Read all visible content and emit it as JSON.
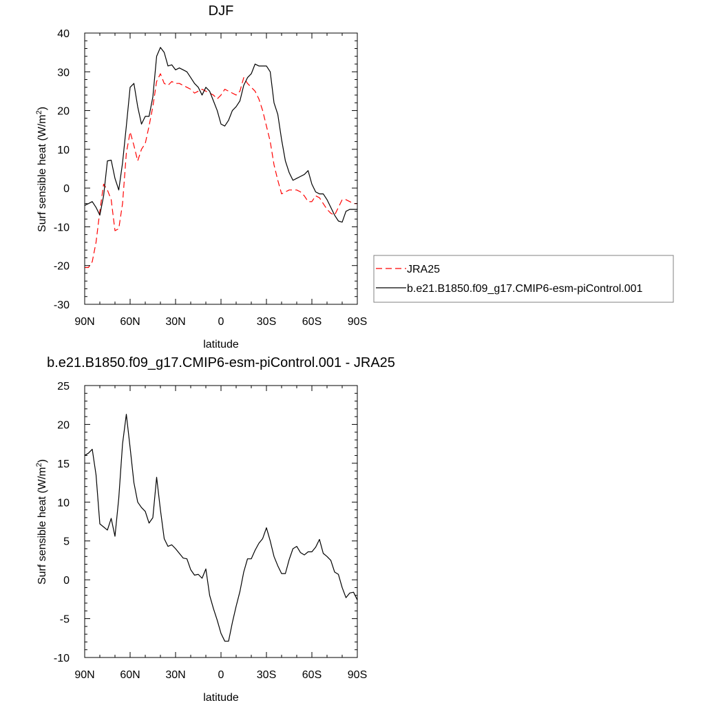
{
  "chart_data": [
    {
      "type": "line",
      "title": "DJF",
      "xlabel": "latitude",
      "ylabel": "Surf sensible heat (W/m",
      "ylabel_sup": "2",
      "ylabel_close": ")",
      "xlim": [
        90,
        -90
      ],
      "ylim": [
        -30,
        40
      ],
      "xticks": [
        90,
        60,
        30,
        0,
        -30,
        -60,
        -90
      ],
      "xtick_labels": [
        "90N",
        "60N",
        "30N",
        "0",
        "30S",
        "60S",
        "90S"
      ],
      "yticks": [
        -30,
        -20,
        -10,
        0,
        10,
        20,
        30,
        40
      ],
      "ytick_labels": [
        "-30",
        "-20",
        "-10",
        "0",
        "10",
        "20",
        "30",
        "40"
      ],
      "grid": false,
      "legend": "right",
      "series": [
        {
          "name": "JRA25",
          "color": "#ff0000",
          "dash": "dashed",
          "points": [
            [
              90,
              -20.5
            ],
            [
              87.5,
              -20.5
            ],
            [
              85,
              -19
            ],
            [
              82.5,
              -14
            ],
            [
              80,
              -6
            ],
            [
              77.5,
              1
            ],
            [
              75,
              -0.5
            ],
            [
              72.5,
              -3
            ],
            [
              70,
              -11
            ],
            [
              67.5,
              -10.5
            ],
            [
              65,
              -4
            ],
            [
              62.5,
              9
            ],
            [
              60,
              14.5
            ],
            [
              57.5,
              11
            ],
            [
              55,
              7
            ],
            [
              52.5,
              10
            ],
            [
              50,
              11.5
            ],
            [
              47.5,
              16
            ],
            [
              45,
              21
            ],
            [
              42.5,
              27.5
            ],
            [
              40,
              29.5
            ],
            [
              37.5,
              27
            ],
            [
              35,
              26.5
            ],
            [
              32.5,
              27.5
            ],
            [
              30,
              27
            ],
            [
              27.5,
              27
            ],
            [
              25,
              26.5
            ],
            [
              22.5,
              26
            ],
            [
              20,
              25.5
            ],
            [
              17.5,
              24.5
            ],
            [
              15,
              25
            ],
            [
              12.5,
              25.5
            ],
            [
              10,
              25
            ],
            [
              7.5,
              24.5
            ],
            [
              5,
              24
            ],
            [
              2.5,
              23
            ],
            [
              0,
              24
            ],
            [
              -2.5,
              25.5
            ],
            [
              -5,
              25
            ],
            [
              -7.5,
              24.5
            ],
            [
              -10,
              24
            ],
            [
              -12.5,
              25
            ],
            [
              -15,
              28.5
            ],
            [
              -17.5,
              27
            ],
            [
              -20,
              26
            ],
            [
              -22.5,
              25
            ],
            [
              -25,
              23
            ],
            [
              -27.5,
              20
            ],
            [
              -30,
              16
            ],
            [
              -32.5,
              12
            ],
            [
              -35,
              6
            ],
            [
              -37.5,
              2
            ],
            [
              -40,
              -1.5
            ],
            [
              -42.5,
              -1
            ],
            [
              -45,
              -0.5
            ],
            [
              -47.5,
              -0.5
            ],
            [
              -50,
              -0.5
            ],
            [
              -52.5,
              -1
            ],
            [
              -55,
              -2
            ],
            [
              -57.5,
              -3.5
            ],
            [
              -60,
              -3.5
            ],
            [
              -62.5,
              -2
            ],
            [
              -65,
              -2.5
            ],
            [
              -67.5,
              -4
            ],
            [
              -70,
              -5.5
            ],
            [
              -72.5,
              -6.5
            ],
            [
              -75,
              -7
            ],
            [
              -77.5,
              -5
            ],
            [
              -80,
              -3
            ],
            [
              -82.5,
              -3
            ],
            [
              -85,
              -3.5
            ],
            [
              -87.5,
              -4
            ],
            [
              -90,
              -4
            ]
          ]
        },
        {
          "name": "b.e21.B1850.f09_g17.CMIP6-esm-piControl.001",
          "color": "#000000",
          "dash": "solid",
          "points": [
            [
              90,
              -4.5
            ],
            [
              87.5,
              -4
            ],
            [
              85,
              -3.5
            ],
            [
              82.5,
              -5
            ],
            [
              80,
              -7
            ],
            [
              77.5,
              -2
            ],
            [
              75,
              7
            ],
            [
              72.5,
              7.2
            ],
            [
              70,
              2.5
            ],
            [
              67.5,
              -0.5
            ],
            [
              65,
              6.5
            ],
            [
              62.5,
              16
            ],
            [
              60,
              26
            ],
            [
              57.5,
              27
            ],
            [
              55,
              21
            ],
            [
              52.5,
              16.5
            ],
            [
              50,
              18.5
            ],
            [
              47.5,
              18.5
            ],
            [
              45,
              23.5
            ],
            [
              42.5,
              34
            ],
            [
              40,
              36.3
            ],
            [
              37.5,
              35
            ],
            [
              35,
              31.5
            ],
            [
              32.5,
              31.8
            ],
            [
              30,
              30.5
            ],
            [
              27.5,
              31
            ],
            [
              25,
              30.5
            ],
            [
              22.5,
              30
            ],
            [
              20,
              28.5
            ],
            [
              17.5,
              27
            ],
            [
              15,
              26
            ],
            [
              12.5,
              24
            ],
            [
              10,
              26
            ],
            [
              7.5,
              25
            ],
            [
              5,
              22.5
            ],
            [
              2.5,
              20
            ],
            [
              0,
              16.5
            ],
            [
              -2.5,
              16
            ],
            [
              -5,
              17.5
            ],
            [
              -7.5,
              20
            ],
            [
              -10,
              21
            ],
            [
              -12.5,
              22.5
            ],
            [
              -15,
              26.5
            ],
            [
              -17.5,
              28.5
            ],
            [
              -20,
              29.5
            ],
            [
              -22.5,
              32
            ],
            [
              -25,
              31.5
            ],
            [
              -27.5,
              31.5
            ],
            [
              -30,
              31.5
            ],
            [
              -32.5,
              30
            ],
            [
              -35,
              22
            ],
            [
              -37.5,
              19
            ],
            [
              -40,
              12.5
            ],
            [
              -42.5,
              7
            ],
            [
              -45,
              4
            ],
            [
              -47.5,
              2
            ],
            [
              -50,
              2.5
            ],
            [
              -52.5,
              3
            ],
            [
              -55,
              3.5
            ],
            [
              -57.5,
              4.5
            ],
            [
              -60,
              1
            ],
            [
              -62.5,
              -1
            ],
            [
              -65,
              -1.5
            ],
            [
              -67.5,
              -1.5
            ],
            [
              -70,
              -3
            ],
            [
              -72.5,
              -5
            ],
            [
              -75,
              -7
            ],
            [
              -77.5,
              -8.5
            ],
            [
              -80,
              -8.8
            ],
            [
              -82.5,
              -6
            ],
            [
              -85,
              -5.5
            ],
            [
              -87.5,
              -5.5
            ],
            [
              -90,
              -5.5
            ]
          ]
        }
      ]
    },
    {
      "type": "line",
      "title": "b.e21.B1850.f09_g17.CMIP6-esm-piControl.001 - JRA25",
      "xlabel": "latitude",
      "ylabel": "Surf sensible heat (W/m",
      "ylabel_sup": "2",
      "ylabel_close": ")",
      "xlim": [
        90,
        -90
      ],
      "ylim": [
        -10,
        25
      ],
      "xticks": [
        90,
        60,
        30,
        0,
        -30,
        -60,
        -90
      ],
      "xtick_labels": [
        "90N",
        "60N",
        "30N",
        "0",
        "30S",
        "60S",
        "90S"
      ],
      "yticks": [
        -10,
        -5,
        0,
        5,
        10,
        15,
        20,
        25
      ],
      "ytick_labels": [
        "-10",
        "-5",
        "0",
        "5",
        "10",
        "15",
        "20",
        "25"
      ],
      "grid": false,
      "series": [
        {
          "color": "#000000",
          "dash": "solid",
          "points": [
            [
              90,
              16
            ],
            [
              87.5,
              16.3
            ],
            [
              85,
              16.8
            ],
            [
              82.5,
              13.5
            ],
            [
              80,
              7.2
            ],
            [
              77.5,
              6.8
            ],
            [
              75,
              6.4
            ],
            [
              72.5,
              7.9
            ],
            [
              70,
              5.6
            ],
            [
              67.5,
              10.5
            ],
            [
              65,
              17.5
            ],
            [
              62.5,
              21.3
            ],
            [
              60,
              17
            ],
            [
              57.5,
              12.5
            ],
            [
              55,
              10
            ],
            [
              52.5,
              9.3
            ],
            [
              50,
              8.8
            ],
            [
              47.5,
              7.3
            ],
            [
              45,
              8
            ],
            [
              42.5,
              13.2
            ],
            [
              40,
              9
            ],
            [
              37.5,
              5.3
            ],
            [
              35,
              4.3
            ],
            [
              32.5,
              4.5
            ],
            [
              30,
              4
            ],
            [
              27.5,
              3.4
            ],
            [
              25,
              2.8
            ],
            [
              22.5,
              2.7
            ],
            [
              20,
              1.3
            ],
            [
              17.5,
              0.6
            ],
            [
              15,
              0.7
            ],
            [
              12.5,
              0.2
            ],
            [
              10,
              1.4
            ],
            [
              7.5,
              -2
            ],
            [
              5,
              -3.7
            ],
            [
              2.5,
              -5.2
            ],
            [
              0,
              -6.9
            ],
            [
              -2.5,
              -7.9
            ],
            [
              -5,
              -7.9
            ],
            [
              -7.5,
              -5.5
            ],
            [
              -10,
              -3.4
            ],
            [
              -12.5,
              -1.5
            ],
            [
              -15,
              1
            ],
            [
              -17.5,
              2.7
            ],
            [
              -20,
              2.7
            ],
            [
              -22.5,
              3.8
            ],
            [
              -25,
              4.7
            ],
            [
              -27.5,
              5.3
            ],
            [
              -30,
              6.7
            ],
            [
              -32.5,
              5
            ],
            [
              -35,
              3
            ],
            [
              -37.5,
              1.8
            ],
            [
              -40,
              0.8
            ],
            [
              -42.5,
              0.8
            ],
            [
              -45,
              2.6
            ],
            [
              -47.5,
              4
            ],
            [
              -50,
              4.3
            ],
            [
              -52.5,
              3.5
            ],
            [
              -55,
              3.2
            ],
            [
              -57.5,
              3.6
            ],
            [
              -60,
              3.6
            ],
            [
              -62.5,
              4.2
            ],
            [
              -65,
              5.2
            ],
            [
              -67.5,
              3.4
            ],
            [
              -70,
              3
            ],
            [
              -72.5,
              2.5
            ],
            [
              -75,
              1
            ],
            [
              -77.5,
              0.7
            ],
            [
              -80,
              -1
            ],
            [
              -82.5,
              -2.3
            ],
            [
              -85,
              -1.7
            ],
            [
              -87.5,
              -1.6
            ],
            [
              -90,
              -2.6
            ]
          ]
        }
      ]
    }
  ]
}
